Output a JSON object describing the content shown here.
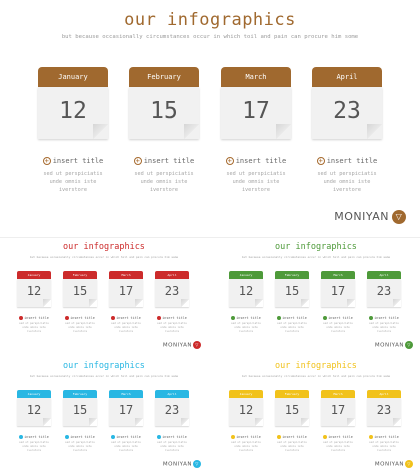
{
  "main": {
    "title": "our infographics",
    "subtitle": "but because occasionally circumstances occur in which toil and pain can procure him some",
    "accent": "#a0692f",
    "calendars": [
      {
        "month": "January",
        "day": "12"
      },
      {
        "month": "February",
        "day": "15"
      },
      {
        "month": "March",
        "day": "17"
      },
      {
        "month": "April",
        "day": "23"
      }
    ],
    "items": [
      {
        "title": "insert title",
        "desc": [
          "sed ut perspiciatis",
          "unde omnis iste",
          "iverstore"
        ]
      },
      {
        "title": "insert title",
        "desc": [
          "sed ut perspiciatis",
          "unde omnis iste",
          "iverstore"
        ]
      },
      {
        "title": "insert title",
        "desc": [
          "sed ut perspiciatis",
          "unde omnis iste",
          "iverstore"
        ]
      },
      {
        "title": "insert title",
        "desc": [
          "sed ut perspiciatis",
          "unde omnis iste",
          "iverstore"
        ]
      }
    ],
    "logo": "MONIYAN"
  },
  "variants": [
    {
      "id": "red",
      "accent": "#cc2b2b",
      "title": "our infographics",
      "subtitle": "but because occasionally circumstances occur in which toil and pain can procure him some",
      "months": [
        "January",
        "February",
        "March",
        "April"
      ],
      "days": [
        "12",
        "15",
        "17",
        "23"
      ],
      "item_title": "insert title",
      "item_desc": [
        "sed ut perspiciatis",
        "unde omnis iste",
        "iverstore"
      ],
      "logo": "MONIYAN"
    },
    {
      "id": "green",
      "accent": "#4e9a3a",
      "title": "our infographics",
      "subtitle": "but because occasionally circumstances occur in which toil and pain can procure him some",
      "months": [
        "January",
        "February",
        "March",
        "April"
      ],
      "days": [
        "12",
        "15",
        "17",
        "23"
      ],
      "item_title": "insert title",
      "item_desc": [
        "sed ut perspiciatis",
        "unde omnis iste",
        "iverstore"
      ],
      "logo": "MONIYAN"
    },
    {
      "id": "blue",
      "accent": "#29b7e3",
      "title": "our infographics",
      "subtitle": "but because occasionally circumstances occur in which toil and pain can procure him some",
      "months": [
        "January",
        "February",
        "March",
        "April"
      ],
      "days": [
        "12",
        "15",
        "17",
        "23"
      ],
      "item_title": "insert title",
      "item_desc": [
        "sed ut perspiciatis",
        "unde omnis iste",
        "iverstore"
      ],
      "logo": "MONIYAN"
    },
    {
      "id": "yellow",
      "accent": "#f1c21b",
      "title": "our infographics",
      "subtitle": "but because occasionally circumstances occur in which toil and pain can procure him some",
      "months": [
        "January",
        "February",
        "March",
        "April"
      ],
      "days": [
        "12",
        "15",
        "17",
        "23"
      ],
      "item_title": "insert title",
      "item_desc": [
        "sed ut perspiciatis",
        "unde omnis iste",
        "iverstore"
      ],
      "logo": "MONIYAN"
    }
  ]
}
